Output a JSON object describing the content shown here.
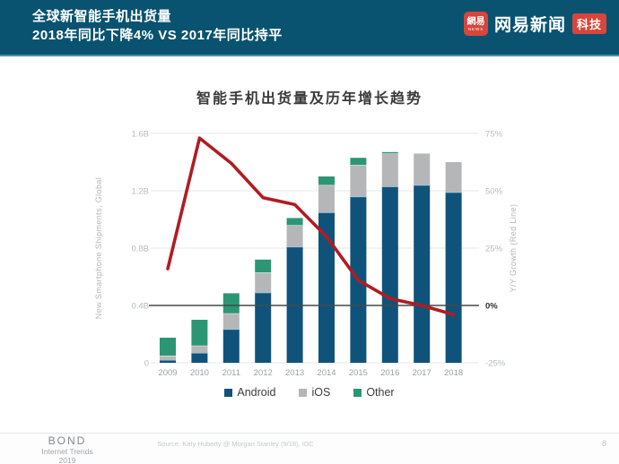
{
  "header": {
    "title_line1": "全球新智能手机出货量",
    "title_line2": "2018年同比下降4%  VS  2017年同比持平",
    "bg_color": "#0a5370",
    "logo": {
      "icon_text": "網易",
      "icon_sub": "NEWS",
      "brand": "网易新闻",
      "badge": "科技",
      "red": "#d7453c"
    }
  },
  "chart": {
    "title": "智能手机出货量及历年增长趋势"
  },
  "chart_data": {
    "type": "bar",
    "title": "智能手机出货量及历年增长趋势",
    "categories": [
      "2009",
      "2010",
      "2011",
      "2012",
      "2013",
      "2014",
      "2015",
      "2016",
      "2017",
      "2018"
    ],
    "series": [
      {
        "name": "Android",
        "color": "#10537a",
        "values": [
          0.02,
          0.07,
          0.235,
          0.49,
          0.81,
          1.05,
          1.16,
          1.23,
          1.24,
          1.19
        ]
      },
      {
        "name": "iOS",
        "color": "#b5b6b7",
        "values": [
          0.03,
          0.05,
          0.11,
          0.14,
          0.15,
          0.19,
          0.22,
          0.23,
          0.22,
          0.21
        ]
      },
      {
        "name": "Other",
        "color": "#2c9674",
        "values": [
          0.125,
          0.18,
          0.14,
          0.09,
          0.05,
          0.06,
          0.05,
          0.01,
          0.0,
          0.0
        ]
      }
    ],
    "line_series": {
      "name": "Y/Y Growth",
      "color": "#b01c22",
      "unit": "%",
      "values": [
        16,
        73,
        62,
        47,
        44,
        30,
        11,
        3,
        0,
        -4
      ]
    },
    "left_axis": {
      "label": "New Smartphone Shipments, Global",
      "ticks": [
        "0",
        "0.4B",
        "0.8B",
        "1.2B",
        "1.6B"
      ],
      "range": [
        0,
        1.6
      ],
      "unit": "B"
    },
    "right_axis": {
      "label": "Y/Y Growth (Red Line)",
      "ticks": [
        "-25%",
        "0%",
        "25%",
        "50%",
        "75%"
      ],
      "range": [
        -25,
        75
      ],
      "zero_line_at": 0
    },
    "legend": [
      "Android",
      "iOS",
      "Other"
    ],
    "legend_position": "bottom",
    "grid": true
  },
  "footer": {
    "logo_line1": "BOND",
    "logo_line2": "Internet Trends",
    "logo_line3": "2019",
    "source": "Source: Katy Huberty @ Morgan Stanley (9/18), IDC",
    "page_number": "8"
  }
}
